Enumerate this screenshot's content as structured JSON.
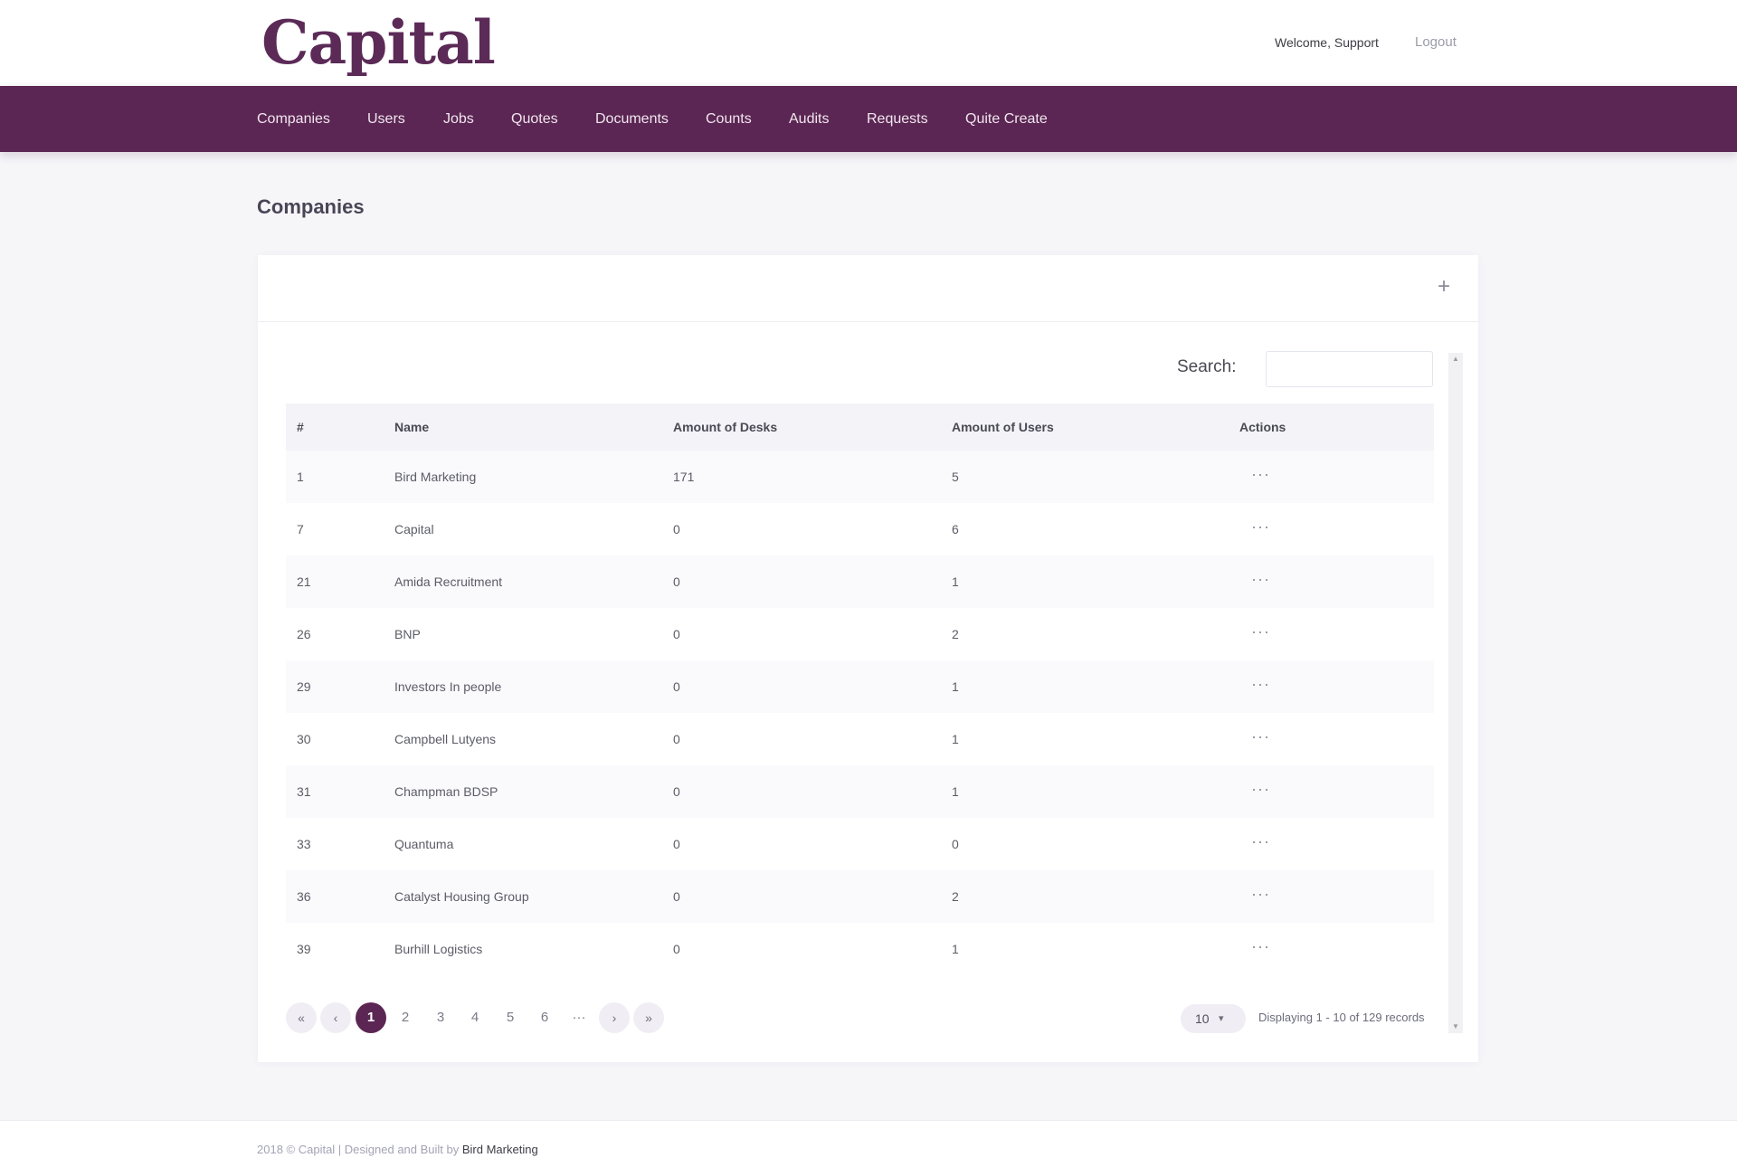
{
  "brand": {
    "logo_text": "Capital"
  },
  "header": {
    "welcome": "Welcome, Support",
    "logout": "Logout"
  },
  "nav": {
    "items": [
      {
        "label": "Companies"
      },
      {
        "label": "Users"
      },
      {
        "label": "Jobs"
      },
      {
        "label": "Quotes"
      },
      {
        "label": "Documents"
      },
      {
        "label": "Counts"
      },
      {
        "label": "Audits"
      },
      {
        "label": "Requests"
      },
      {
        "label": "Quite Create"
      }
    ]
  },
  "page": {
    "title": "Companies"
  },
  "toolbar": {
    "add_icon": "+"
  },
  "search": {
    "label": "Search:",
    "value": "",
    "placeholder": ""
  },
  "table": {
    "headers": [
      "#",
      "Name",
      "Amount of Desks",
      "Amount of Users",
      "Actions"
    ],
    "actions_glyph": "···",
    "rows": [
      {
        "id": "1",
        "name": "Bird Marketing",
        "desks": "171",
        "users": "5"
      },
      {
        "id": "7",
        "name": "Capital",
        "desks": "0",
        "users": "6"
      },
      {
        "id": "21",
        "name": "Amida Recruitment",
        "desks": "0",
        "users": "1"
      },
      {
        "id": "26",
        "name": "BNP",
        "desks": "0",
        "users": "2"
      },
      {
        "id": "29",
        "name": "Investors In people",
        "desks": "0",
        "users": "1"
      },
      {
        "id": "30",
        "name": "Campbell Lutyens",
        "desks": "0",
        "users": "1"
      },
      {
        "id": "31",
        "name": "Champman BDSP",
        "desks": "0",
        "users": "1"
      },
      {
        "id": "33",
        "name": "Quantuma",
        "desks": "0",
        "users": "0"
      },
      {
        "id": "36",
        "name": "Catalyst Housing Group",
        "desks": "0",
        "users": "2"
      },
      {
        "id": "39",
        "name": "Burhill Logistics",
        "desks": "0",
        "users": "1"
      }
    ]
  },
  "pagination": {
    "first": "«",
    "prev": "‹",
    "pages": [
      "1",
      "2",
      "3",
      "4",
      "5",
      "6"
    ],
    "current": "1",
    "ellipsis": "···",
    "next": "›",
    "last": "»",
    "per_page": "10",
    "records_text": "Displaying 1 - 10 of 129 records"
  },
  "footer": {
    "prefix": "2018 © Capital | Designed and Built by ",
    "link": "Bird Marketing"
  },
  "colors": {
    "brand": "#5b2653",
    "logo": "#5b2a57",
    "background": "#f6f6f9"
  }
}
